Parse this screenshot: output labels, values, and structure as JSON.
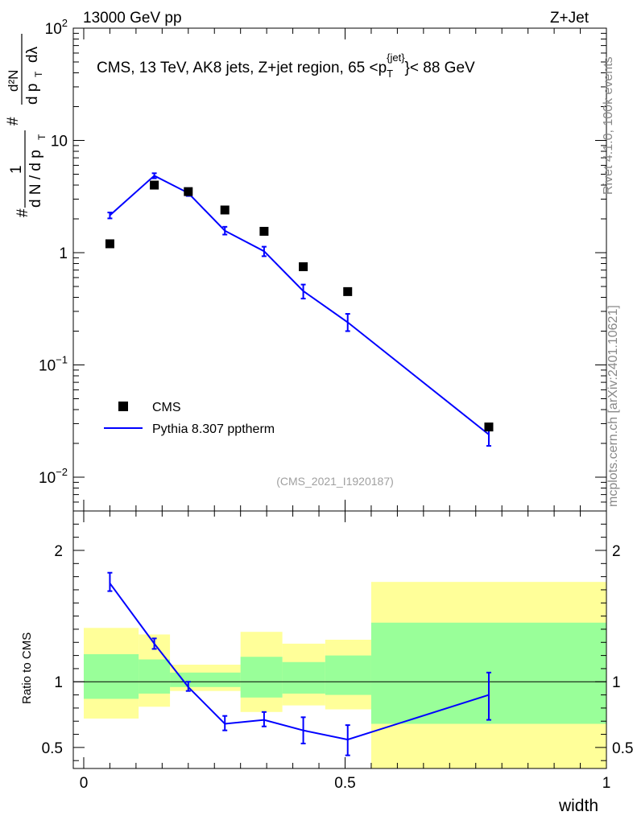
{
  "header": {
    "left": "13000 GeV pp",
    "right": "Z+Jet",
    "side_top": "Rivet 4.1.0,  100k events",
    "side_bottom": "mcplots.cern.ch [arXiv:2401.10621]"
  },
  "chart_data": [
    {
      "type": "scatter",
      "panel": "main",
      "title": "CMS, 13 TeV, AK8 jets, Z+jet region, 65 <p_T^{jet}< 88 GeV",
      "title_parts": {
        "pre": "CMS, 13 TeV, AK8 jets, Z+jet region, 65 <p",
        "sub": "T",
        "sup": "{jet}",
        "post": "}< 88 GeV"
      },
      "ylabel": "# 1/(dN/dp_T) # d²N/(dp_T dλ)",
      "ylabel_parts": {
        "hash": "#",
        "one": "1",
        "dN": "d N / d p",
        "T": "T",
        "num": "d²N",
        "den": "d p",
        "dl": "dλ"
      },
      "yscale": "log",
      "ylim": [
        0.005,
        100
      ],
      "xlim": [
        -0.02,
        1.0
      ],
      "y_tick_labels": [
        {
          "v": 100,
          "base": "10",
          "exp": "2"
        },
        {
          "v": 10,
          "base": "10",
          "exp": ""
        },
        {
          "v": 1,
          "base": "1",
          "exp": ""
        },
        {
          "v": 0.1,
          "base": "10",
          "exp": "−1"
        },
        {
          "v": 0.01,
          "base": "10",
          "exp": "−2"
        }
      ],
      "watermark": "(CMS_2021_I1920187)",
      "legend": [
        {
          "name": "CMS",
          "marker": "square",
          "color": "#000000"
        },
        {
          "name": "Pythia 8.307 pptherm",
          "marker": "line",
          "color": "#0000ff"
        }
      ],
      "series": [
        {
          "name": "CMS",
          "color": "#000000",
          "x": [
            0.05,
            0.135,
            0.2,
            0.27,
            0.345,
            0.42,
            0.505,
            0.775
          ],
          "y": [
            1.2,
            4.0,
            3.5,
            2.4,
            1.55,
            0.75,
            0.45,
            0.028
          ]
        },
        {
          "name": "Pythia 8.307 pptherm",
          "color": "#0000ff",
          "x": [
            0.05,
            0.135,
            0.2,
            0.27,
            0.345,
            0.42,
            0.505,
            0.775
          ],
          "y": [
            2.15,
            4.85,
            3.4,
            1.57,
            1.03,
            0.455,
            0.24,
            0.024
          ],
          "yerr_low": [
            2.02,
            4.6,
            3.2,
            1.45,
            0.93,
            0.39,
            0.2,
            0.019
          ],
          "yerr_high": [
            2.28,
            5.1,
            3.6,
            1.7,
            1.13,
            0.52,
            0.285,
            0.029
          ]
        }
      ]
    },
    {
      "type": "line",
      "panel": "ratio",
      "ylabel": "Ratio to CMS",
      "xlabel": "width",
      "xlim": [
        -0.02,
        1.0
      ],
      "ylim": [
        0.34,
        2.3
      ],
      "x_ticks": [
        0,
        0.5,
        1
      ],
      "x_tick_labels": [
        "0",
        "0.5",
        "1"
      ],
      "y_ticks": [
        0.5,
        1,
        2
      ],
      "y_tick_labels": [
        "0.5",
        "1",
        "2"
      ],
      "reference_line": 1,
      "bands": [
        {
          "x0": 0.0,
          "x1": 0.105,
          "yellow": [
            0.72,
            1.41
          ],
          "green": [
            0.87,
            1.21
          ]
        },
        {
          "x0": 0.105,
          "x1": 0.165,
          "yellow": [
            0.81,
            1.36
          ],
          "green": [
            0.91,
            1.17
          ]
        },
        {
          "x0": 0.165,
          "x1": 0.3,
          "yellow": [
            0.93,
            1.13
          ],
          "green": [
            0.96,
            1.07
          ]
        },
        {
          "x0": 0.3,
          "x1": 0.38,
          "yellow": [
            0.77,
            1.38
          ],
          "green": [
            0.88,
            1.19
          ]
        },
        {
          "x0": 0.38,
          "x1": 0.462,
          "yellow": [
            0.82,
            1.29
          ],
          "green": [
            0.91,
            1.15
          ]
        },
        {
          "x0": 0.462,
          "x1": 0.55,
          "yellow": [
            0.79,
            1.32
          ],
          "green": [
            0.9,
            1.2
          ]
        },
        {
          "x0": 0.55,
          "x1": 1.0,
          "yellow": [
            0.34,
            1.76
          ],
          "green": [
            0.68,
            1.45
          ]
        }
      ],
      "series": [
        {
          "name": "Pythia 8.307 pptherm",
          "color": "#0000ff",
          "x": [
            0.05,
            0.135,
            0.2,
            0.27,
            0.345,
            0.42,
            0.505,
            0.775
          ],
          "y": [
            1.75,
            1.29,
            0.96,
            0.68,
            0.71,
            0.63,
            0.56,
            0.9
          ],
          "yerr_low": [
            1.69,
            1.25,
            0.93,
            0.63,
            0.66,
            0.53,
            0.44,
            0.71
          ],
          "yerr_high": [
            1.83,
            1.33,
            1.0,
            0.74,
            0.77,
            0.73,
            0.67,
            1.07
          ]
        }
      ]
    }
  ]
}
